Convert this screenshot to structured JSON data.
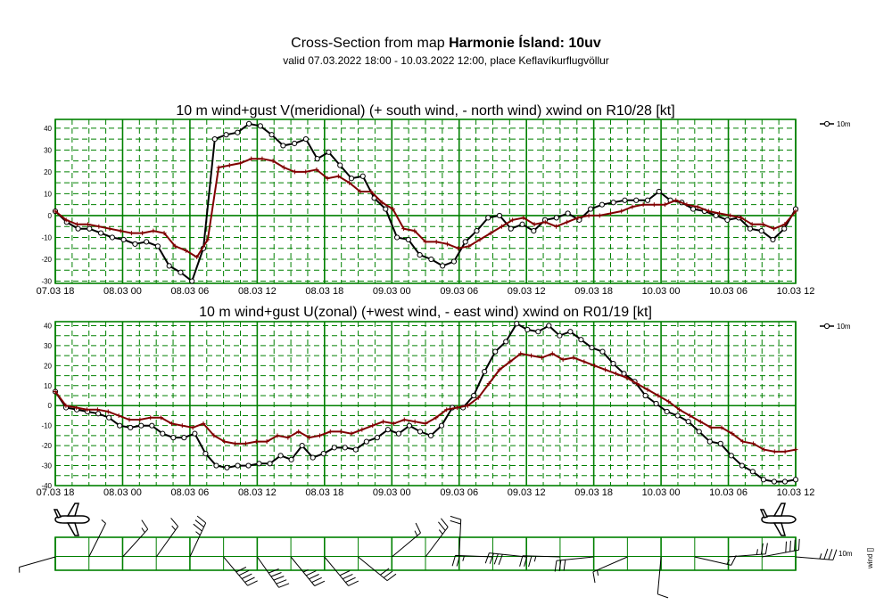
{
  "header": {
    "title_prefix": "Cross-Section from map ",
    "title_bold": "Harmonie Ísland: 10uv",
    "subtitle": "valid 07.03.2022 18:00 - 10.03.2022 12:00, place Keflavíkurflugvöllur"
  },
  "colors": {
    "grid": "#008000",
    "wind": "#000000",
    "gust": "#800000"
  },
  "chart_data": [
    {
      "type": "line",
      "title": "10 m wind+gust V(meridional) (+ south wind, - north wind) xwind on R10/28 [kt]",
      "ylim": [
        -31,
        44
      ],
      "yticks": [
        -30,
        -20,
        -10,
        0,
        10,
        20,
        30,
        40
      ],
      "x_labels": [
        "07.03 18",
        "08.03 00",
        "08.03 06",
        "08.03 12",
        "08.03 18",
        "09.03 00",
        "09.03 06",
        "09.03 12",
        "09.03 18",
        "10.03 00",
        "10.03 06",
        "10.03 12"
      ],
      "x_range_hours": [
        0,
        66
      ],
      "grid": true,
      "legend": {
        "position": "right",
        "label": "10m"
      },
      "series": [
        {
          "style": "wind",
          "marker": "circle",
          "values": [
            2,
            -3,
            -6,
            -6,
            -8,
            -10,
            -11,
            -13,
            -12,
            -14,
            -23,
            -26,
            -30,
            -15,
            35,
            37,
            38,
            42,
            41,
            37,
            32,
            33,
            35,
            26,
            29,
            23,
            17,
            18,
            8,
            3,
            -10,
            -11,
            -18,
            -20,
            -23,
            -21,
            -12,
            -7,
            -1,
            0,
            -6,
            -4,
            -7,
            -2,
            -1,
            1,
            -2,
            3,
            5,
            6,
            7,
            7,
            7,
            11,
            7,
            6,
            3,
            2,
            0,
            -2,
            -1,
            -6,
            -7,
            -11,
            -6,
            3
          ]
        },
        {
          "style": "gust",
          "marker": "plus",
          "values": [
            2,
            -2,
            -4,
            -4,
            -5,
            -6,
            -7,
            -8,
            -8,
            -7,
            -8,
            -14,
            -16,
            -19,
            -11,
            22,
            23,
            24,
            26,
            26,
            25,
            22,
            20,
            20,
            21,
            17,
            18,
            15,
            11,
            11,
            6,
            3,
            -6,
            -7,
            -12,
            -12,
            -13,
            -15,
            -14,
            -11,
            -8,
            -5,
            -2,
            -1,
            -4,
            -3,
            -5,
            -3,
            -1,
            0,
            0,
            1,
            2,
            4,
            5,
            5,
            5,
            7,
            5,
            4,
            2,
            1,
            0,
            -1,
            -4,
            -4,
            -6,
            -4,
            2
          ]
        }
      ]
    },
    {
      "type": "line",
      "title": "10 m wind+gust U(zonal) (+west wind, - east wind) xwind on R01/19 [kt]",
      "ylim": [
        -40,
        42
      ],
      "yticks": [
        -40,
        -30,
        -20,
        -10,
        0,
        10,
        20,
        30,
        40
      ],
      "x_labels": [
        "07.03 18",
        "08.03 00",
        "08.03 06",
        "08.03 12",
        "08.03 18",
        "09.03 00",
        "09.03 06",
        "09.03 12",
        "09.03 18",
        "10.03 00",
        "10.03 06",
        "10.03 12"
      ],
      "x_range_hours": [
        0,
        66
      ],
      "grid": true,
      "legend": {
        "position": "right",
        "label": "10m"
      },
      "series": [
        {
          "style": "wind",
          "marker": "circle",
          "values": [
            7,
            -1,
            -2,
            -3,
            -4,
            -6,
            -10,
            -11,
            -10,
            -10,
            -14,
            -16,
            -16,
            -14,
            -24,
            -30,
            -31,
            -30,
            -30,
            -29,
            -29,
            -25,
            -27,
            -20,
            -26,
            -24,
            -21,
            -21,
            -22,
            -18,
            -16,
            -12,
            -14,
            -10,
            -13,
            -15,
            -10,
            -1,
            -1,
            5,
            17,
            27,
            32,
            41,
            38,
            37,
            40,
            35,
            37,
            33,
            29,
            27,
            21,
            16,
            12,
            5,
            1,
            -3,
            -5,
            -8,
            -13,
            -18,
            -19,
            -25,
            -30,
            -33,
            -37,
            -38,
            -38,
            -37
          ]
        },
        {
          "style": "gust",
          "marker": "plus",
          "values": [
            7,
            0,
            -1,
            -2,
            -2,
            -3,
            -5,
            -7,
            -7,
            -6,
            -6,
            -9,
            -10,
            -11,
            -9,
            -15,
            -18,
            -19,
            -19,
            -18,
            -18,
            -15,
            -16,
            -13,
            -16,
            -15,
            -13,
            -13,
            -14,
            -12,
            -10,
            -8,
            -9,
            -7,
            -8,
            -9,
            -6,
            -2,
            -1,
            0,
            4,
            11,
            18,
            22,
            26,
            25,
            24,
            26,
            23,
            24,
            22,
            20,
            18,
            16,
            14,
            11,
            8,
            5,
            2,
            -2,
            -5,
            -8,
            -11,
            -11,
            -14,
            -18,
            -19,
            -22,
            -23,
            -23,
            -22
          ]
        }
      ]
    }
  ],
  "barbs": {
    "legend": "10m",
    "axis_label": "wind []"
  }
}
